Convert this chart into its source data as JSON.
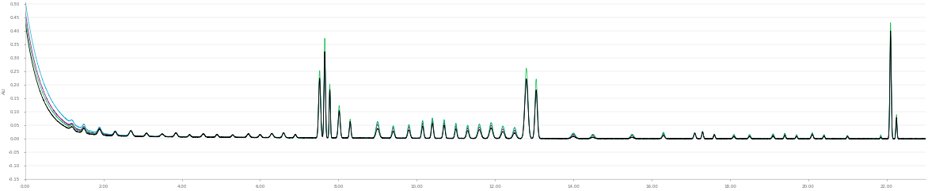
{
  "title": "",
  "xlabel": "",
  "ylabel": "AU",
  "xlim": [
    0.0,
    23.0
  ],
  "ylim": [
    -0.15,
    0.505
  ],
  "ytick_vals": [
    0.5,
    0.45,
    0.4,
    0.35,
    0.3,
    0.25,
    0.2,
    0.15,
    0.1,
    0.05,
    0.0,
    -0.05,
    -0.1,
    -0.15
  ],
  "xtick_vals": [
    0.0,
    2.0,
    4.0,
    6.0,
    8.0,
    10.0,
    12.0,
    14.0,
    16.0,
    18.0,
    20.0,
    22.0
  ],
  "colors": {
    "black": "#000000",
    "violet": "#8B008B",
    "green": "#00BB44",
    "cyan": "#00AACC"
  },
  "background_color": "#FFFFFF",
  "plot_bg_color": "#FFFFFF",
  "figsize": [
    11.72,
    2.41
  ],
  "dpi": 100
}
